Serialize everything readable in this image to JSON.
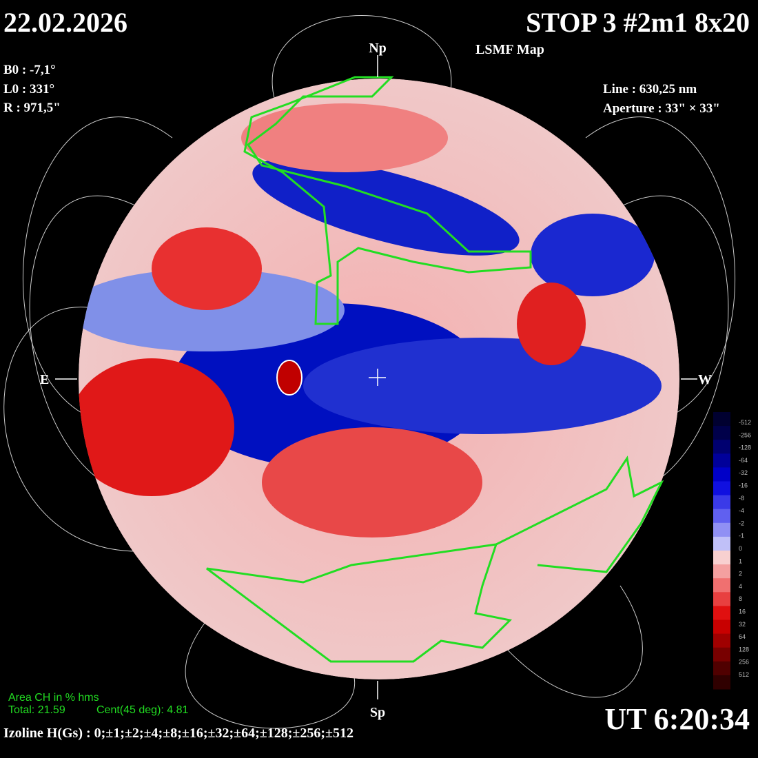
{
  "header": {
    "date": "22.02.2026",
    "title": "STOP 3 #2m1 8x20",
    "subtitle": "LSMF  Map"
  },
  "parameters": {
    "b0": "B0 : -7,1°",
    "l0": "L0 : 331°",
    "r": "R  : 971,5\"",
    "line": "Line :  630,25 nm",
    "aperture": "Aperture : 33\" × 33\""
  },
  "directions": {
    "north": "Np",
    "south": "Sp",
    "east": "E",
    "west": "W"
  },
  "colorbar": {
    "labels": [
      "-512",
      "-256",
      "-128",
      "-64",
      "-32",
      "-16",
      "-8",
      "-4",
      "-2",
      "-1",
      "0",
      "1",
      "2",
      "4",
      "8",
      "16",
      "32",
      "64",
      "128",
      "256",
      "512"
    ],
    "colors": [
      "#000030",
      "#00004a",
      "#000070",
      "#00009a",
      "#0000c8",
      "#1010e0",
      "#3a3ae8",
      "#6060f0",
      "#9090f4",
      "#c0c0f8",
      "#f8d0d0",
      "#f4a0a0",
      "#f07070",
      "#e84040",
      "#e01010",
      "#c80000",
      "#a00000",
      "#780000",
      "#500000",
      "#300000"
    ]
  },
  "footer": {
    "area_title": "Area CH in % hms",
    "total": "Total: 21.59",
    "central": "Cent(45 deg): 4.81",
    "time": "UT 6:20:34",
    "izoline": "Izoline H(Gs) : 0;±1;±2;±4;±8;±16;±32;±64;±128;±256;±512"
  }
}
